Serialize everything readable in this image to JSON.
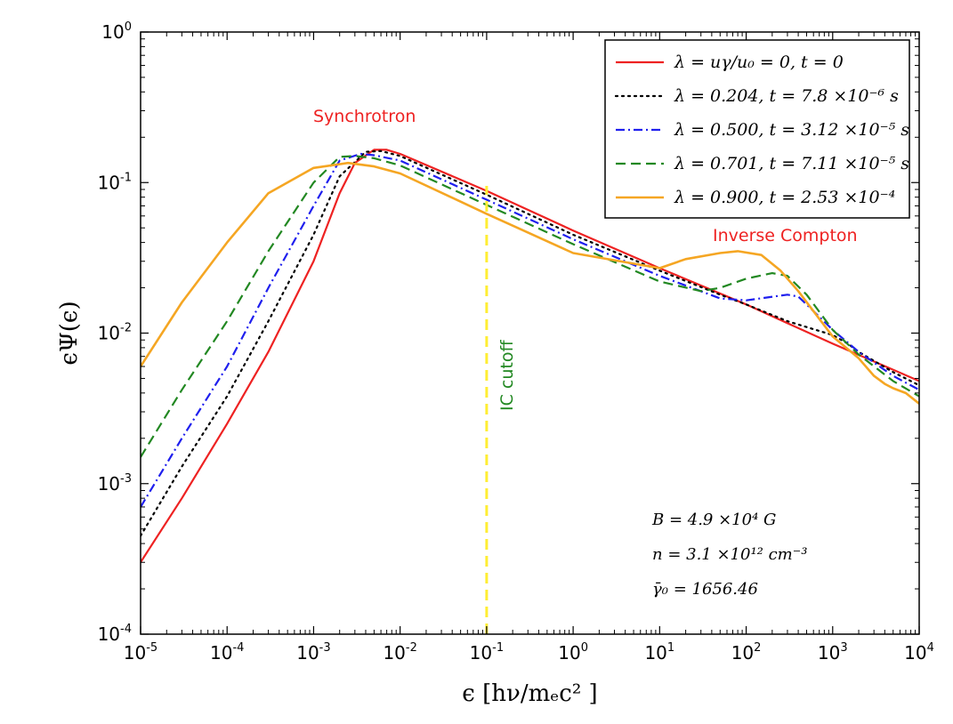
{
  "chart_data": {
    "type": "line",
    "xscale": "log",
    "yscale": "log",
    "xlim": [
      1e-05,
      10000.0
    ],
    "ylim": [
      0.0001,
      1
    ],
    "xlabel": "ϵ [hν/mₑc² ]",
    "ylabel": "ϵΨ(ϵ)",
    "x_ticks": [
      {
        "base": "10",
        "exp": "-5"
      },
      {
        "base": "10",
        "exp": "-4"
      },
      {
        "base": "10",
        "exp": "-3"
      },
      {
        "base": "10",
        "exp": "-2"
      },
      {
        "base": "10",
        "exp": "-1"
      },
      {
        "base": "10",
        "exp": "0"
      },
      {
        "base": "10",
        "exp": "1"
      },
      {
        "base": "10",
        "exp": "2"
      },
      {
        "base": "10",
        "exp": "3"
      },
      {
        "base": "10",
        "exp": "4"
      }
    ],
    "y_ticks": [
      {
        "base": "10",
        "exp": "-4"
      },
      {
        "base": "10",
        "exp": "-3"
      },
      {
        "base": "10",
        "exp": "-2"
      },
      {
        "base": "10",
        "exp": "-1"
      },
      {
        "base": "10",
        "exp": "0"
      }
    ],
    "grid": false,
    "legend_position": "top-right",
    "series": [
      {
        "name": "λ = uγ/u₀ = 0, t = 0",
        "color": "#ee2222",
        "dash": "solid",
        "x": [
          1e-05,
          3e-05,
          0.0001,
          0.0003,
          0.001,
          0.002,
          0.003,
          0.005,
          0.007,
          0.01,
          0.1,
          1,
          10,
          100,
          1000,
          10000.0
        ],
        "y": [
          0.0003,
          0.0008,
          0.0025,
          0.0075,
          0.03,
          0.085,
          0.135,
          0.165,
          0.165,
          0.155,
          0.088,
          0.048,
          0.027,
          0.0155,
          0.0085,
          0.0048
        ]
      },
      {
        "name": "λ = 0.204, t = 7.8 ×10⁻⁶ s",
        "color": "#000000",
        "dash": "dotted",
        "x": [
          1e-05,
          3e-05,
          0.0001,
          0.0003,
          0.001,
          0.002,
          0.004,
          0.006,
          0.01,
          0.1,
          1,
          10,
          50,
          100,
          300,
          1000,
          1500,
          2000,
          5000,
          10000.0
        ],
        "y": [
          0.00045,
          0.0013,
          0.0038,
          0.012,
          0.045,
          0.11,
          0.16,
          0.162,
          0.15,
          0.083,
          0.045,
          0.026,
          0.018,
          0.0155,
          0.012,
          0.0097,
          0.0085,
          0.0075,
          0.0055,
          0.0045
        ]
      },
      {
        "name": "λ = 0.500, t = 3.12 ×10⁻⁵ s",
        "color": "#1f1fee",
        "dash": "dashdot",
        "x": [
          1e-05,
          3e-05,
          0.0001,
          0.0003,
          0.001,
          0.002,
          0.0035,
          0.005,
          0.01,
          0.1,
          1,
          10,
          50,
          100,
          300,
          400,
          600,
          1000,
          2000,
          5000,
          10000.0
        ],
        "y": [
          0.0007,
          0.002,
          0.006,
          0.02,
          0.07,
          0.14,
          0.155,
          0.152,
          0.14,
          0.077,
          0.042,
          0.024,
          0.017,
          0.0165,
          0.018,
          0.0175,
          0.014,
          0.0105,
          0.0075,
          0.0052,
          0.0042
        ]
      },
      {
        "name": "λ = 0.701, t = 7.11 ×10⁻⁵ s",
        "color": "#228822",
        "dash": "dashed",
        "x": [
          1e-05,
          3e-05,
          0.0001,
          0.0003,
          0.001,
          0.002,
          0.003,
          0.005,
          0.01,
          0.1,
          1,
          10,
          30,
          50,
          100,
          200,
          300,
          500,
          1000,
          2000,
          5000,
          10000.0
        ],
        "y": [
          0.0015,
          0.0042,
          0.012,
          0.035,
          0.1,
          0.148,
          0.15,
          0.145,
          0.13,
          0.071,
          0.039,
          0.022,
          0.019,
          0.02,
          0.023,
          0.025,
          0.024,
          0.018,
          0.0105,
          0.0072,
          0.0048,
          0.0038
        ]
      },
      {
        "name": "λ = 0.900, t = 2.53 ×10⁻⁴",
        "color": "#f5a623",
        "dash": "solid",
        "x": [
          1e-05,
          3e-05,
          0.0001,
          0.0003,
          0.001,
          0.0025,
          0.005,
          0.01,
          0.1,
          1,
          10,
          20,
          50,
          80,
          150,
          250,
          400,
          1000,
          2000,
          3000,
          4000,
          5000,
          7000,
          10000.0
        ],
        "y": [
          0.006,
          0.016,
          0.04,
          0.085,
          0.125,
          0.135,
          0.128,
          0.115,
          0.062,
          0.034,
          0.027,
          0.031,
          0.034,
          0.035,
          0.033,
          0.026,
          0.019,
          0.0095,
          0.0068,
          0.0052,
          0.0046,
          0.0043,
          0.004,
          0.0034
        ]
      }
    ],
    "cutoff_line": {
      "x": 0.1,
      "y_from": 0.0001,
      "y_to": 0.095,
      "color": "#ffee33"
    },
    "annotations": [
      {
        "text": "Synchrotron",
        "color": "#ee2222"
      },
      {
        "text": "Inverse Compton",
        "color": "#ee2222"
      },
      {
        "text": "IC cutoff",
        "color": "#228822"
      }
    ],
    "params": [
      "B = 4.9 ×10⁴ G",
      "n = 3.1 ×10¹² cm⁻³",
      "γ̄₀ = 1656.46"
    ]
  }
}
